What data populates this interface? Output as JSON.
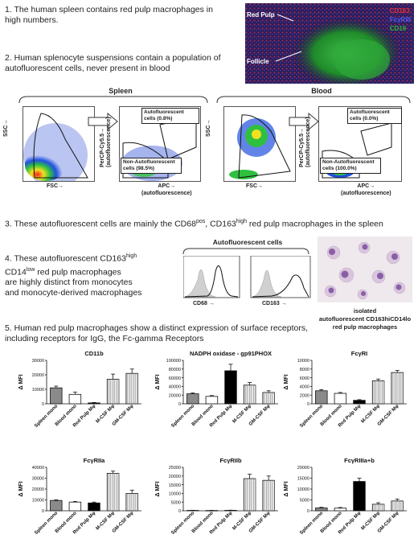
{
  "statements": {
    "s1": "1. The human spleen contains red pulp macrophages in high numbers.",
    "s2": "2. Human splenocyte suspensions contain a population of autofluorescent cells, never present in blood",
    "s3_pre": "3. These autofluorescent cells are mainly the CD68",
    "s3_sup1": "pos",
    "s3_mid": ", CD163",
    "s3_sup2": "high",
    "s3_post": " red pulp macrophages in the spleen",
    "s4_l1_pre": "4. These autofluorescent CD163",
    "s4_l1_sup": "high",
    "s4_l2_pre": "CD14",
    "s4_l2_sup": "low",
    "s4_l2_post": " red pulp macrophages",
    "s4_l3": "are highly distinct from monocytes",
    "s4_l4": "and monocyte-derived macrophages",
    "s5": "5. Human red pulp macrophages show a distinct expression of surface receptors, including receptors for IgG, the Fc-gamma Receptors"
  },
  "histology": {
    "label_red_pulp": "Red Pulp",
    "label_follicle": "Follicle",
    "legend": [
      {
        "text": "CD163",
        "color": "#e8303a"
      },
      {
        "text": "FcγRIII",
        "color": "#3a4ee8"
      },
      {
        "text": "CD19",
        "color": "#26a633"
      }
    ]
  },
  "flow": {
    "spleen_title": "Spleen",
    "blood_title": "Blood",
    "ssc": "SSC→",
    "fsc": "FSC→",
    "percp": "PerCP-Cy5.5→",
    "percp2": "(autofluorescence)",
    "apc": "APC→",
    "apc2": "(autofluorescence)",
    "spleen_af": "Autofluorescent cells (0.8%)",
    "spleen_naf": "Non-Autofluorescent cells (98.5%)",
    "blood_af": "Autofluorescent cells (0.0%)",
    "blood_naf": "Non-Autofluorescent cells (100.0%)"
  },
  "histograms": {
    "title": "Autofluorescent cells",
    "cd68": "CD68 →",
    "cd163": "CD163 →"
  },
  "micrograph": {
    "caption_l1": "isolated",
    "caption_l2": "autofluorescent CD163hiCD14lo",
    "caption_l3": "red pulp macrophages"
  },
  "chart_data": [
    {
      "type": "bar",
      "title": "CD11b",
      "ylabel": "Δ MFI",
      "ylim": [
        0,
        30000
      ],
      "yticks": [
        0,
        10000,
        20000,
        30000
      ],
      "categories": [
        "Spleen mono",
        "Blood mono",
        "Red Pulp Mφ",
        "M-CSF Mφ",
        "GM-CSF Mφ"
      ],
      "values": [
        11000,
        6500,
        600,
        17000,
        21000
      ],
      "errors": [
        1200,
        1500,
        300,
        3500,
        3000
      ]
    },
    {
      "type": "bar",
      "title": "NADPH oxidase - gp91PHOX",
      "ylabel": "Δ MFI",
      "ylim": [
        0,
        100000
      ],
      "yticks": [
        0,
        20000,
        40000,
        60000,
        80000,
        100000
      ],
      "categories": [
        "Spleen mono",
        "Blood mono",
        "Red Pulp Mφ",
        "M-CSF Mφ",
        "GM-CSF Mφ"
      ],
      "values": [
        23000,
        17000,
        76000,
        43000,
        26000
      ],
      "errors": [
        2000,
        2000,
        15000,
        6000,
        4000
      ]
    },
    {
      "type": "bar",
      "title": "FcγRI",
      "ylabel": "Δ MFI",
      "ylim": [
        0,
        10000
      ],
      "yticks": [
        0,
        2000,
        4000,
        6000,
        8000,
        10000
      ],
      "categories": [
        "Spleen mono",
        "Blood mono",
        "Red Pulp Mφ",
        "M-CSF Mφ",
        "GM-CSF Mφ"
      ],
      "values": [
        3000,
        2400,
        800,
        5300,
        7200
      ],
      "errors": [
        250,
        200,
        150,
        400,
        500
      ]
    },
    {
      "type": "bar",
      "title": "FcγRIIa",
      "ylabel": "Δ MFI",
      "ylim": [
        0,
        40000
      ],
      "yticks": [
        0,
        10000,
        20000,
        30000,
        40000
      ],
      "categories": [
        "Spleen mono",
        "Blood mono",
        "Red Pulp Mφ",
        "M-CSF Mφ",
        "GM-CSF Mφ"
      ],
      "values": [
        9500,
        8000,
        7200,
        34500,
        16000
      ],
      "errors": [
        600,
        600,
        800,
        2000,
        3000
      ]
    },
    {
      "type": "bar",
      "title": "FcγRIIb",
      "ylabel": "Δ MFI",
      "ylim": [
        0,
        25000
      ],
      "yticks": [
        0,
        5000,
        10000,
        15000,
        20000,
        25000
      ],
      "categories": [
        "Spleen mono",
        "Blood mono",
        "Red Pulp Mφ",
        "M-CSF Mφ",
        "GM-CSF Mφ"
      ],
      "values": [
        200,
        150,
        250,
        18500,
        17500
      ],
      "errors": [
        100,
        80,
        100,
        2500,
        2500
      ]
    },
    {
      "type": "bar",
      "title": "FcγRIIIa+b",
      "ylabel": "Δ MFI",
      "ylim": [
        0,
        20000
      ],
      "yticks": [
        0,
        5000,
        10000,
        15000,
        20000
      ],
      "categories": [
        "Spleen mono",
        "Blood mono",
        "Red Pulp Mφ",
        "M-CSF Mφ",
        "GM-CSF Mφ"
      ],
      "values": [
        1300,
        1200,
        13500,
        3000,
        4500
      ],
      "errors": [
        300,
        300,
        1500,
        700,
        900
      ]
    }
  ],
  "colors": {
    "bar_fills": [
      "#8a8a8a",
      "#ffffff",
      "#000000",
      "#e8e8e8",
      "#e8e8e8"
    ]
  }
}
